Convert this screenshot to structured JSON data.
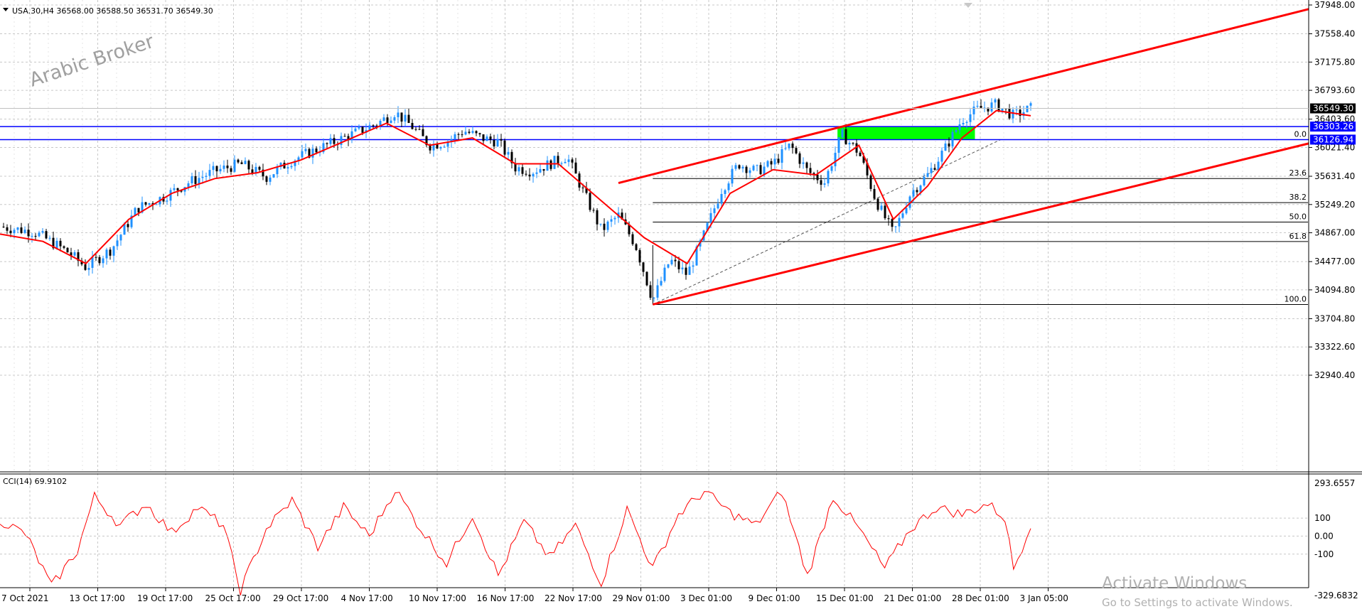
{
  "header": {
    "symbol_label": "USA.30,H4  36568.00 36588.50 36531.70 36549.30",
    "watermark": "Arabic Broker"
  },
  "indicator": {
    "label": "CCI(14) 69.9102",
    "axis_labels": [
      "293.6557",
      "100",
      "0.00",
      "-100",
      "-329.6832"
    ]
  },
  "os_watermark": {
    "line1": "Activate Windows",
    "line2": "Go to Settings to activate Windows."
  },
  "colors": {
    "bull": "#1E90FF",
    "bear": "#000000",
    "ma": "#FF0000",
    "trend": "#FF0000",
    "level": "#0000FF",
    "zone": "#00FF00",
    "fib": "#000000",
    "grid": "#C8C8C8"
  },
  "chart_data": {
    "type": "candlestick",
    "symbol": "USA.30",
    "timeframe": "H4",
    "ohlc_last": {
      "open": 36568.0,
      "high": 36588.5,
      "low": 36531.7,
      "close": 36549.3
    },
    "price_axis_ticks": [
      37948.0,
      37558.4,
      37175.8,
      36793.6,
      36403.6,
      36021.4,
      35631.4,
      35249.2,
      34867.0,
      34477.0,
      34094.8,
      33704.8,
      33322.6,
      32940.4
    ],
    "time_axis_labels": [
      "7 Oct 2021",
      "13 Oct 17:00",
      "19 Oct 17:00",
      "25 Oct 17:00",
      "29 Oct 17:00",
      "4 Nov 17:00",
      "10 Nov 17:00",
      "16 Nov 17:00",
      "22 Nov 17:00",
      "29 Nov 01:00",
      "3 Dec 01:00",
      "9 Dec 01:00",
      "15 Dec 01:00",
      "21 Dec 01:00",
      "28 Dec 01:00",
      "3 Jan 05:00"
    ],
    "current_price_label": "36549.30",
    "horizontal_levels": [
      {
        "label": "36303.26",
        "price": 36303.26
      },
      {
        "label": "36126.94",
        "price": 36126.94
      }
    ],
    "fibonacci": {
      "high": 36126.94,
      "low": 33897.0,
      "levels": [
        {
          "label": "0.0",
          "ratio": 0.0
        },
        {
          "label": "23.6",
          "ratio": 0.236
        },
        {
          "label": "38.2",
          "ratio": 0.382
        },
        {
          "label": "50.0",
          "ratio": 0.5
        },
        {
          "label": "61.8",
          "ratio": 0.618
        },
        {
          "label": "100.0",
          "ratio": 1.0
        }
      ]
    },
    "channel": {
      "upper": {
        "from_price": 35540,
        "to_price": 37892
      },
      "lower": {
        "from_price": 33897,
        "to_price": 36075
      }
    },
    "supply_zone": {
      "top": 36303.26,
      "bottom": 36126.94
    },
    "price_path": [
      {
        "t": 0,
        "p": 34950
      },
      {
        "t": 4,
        "p": 34880
      },
      {
        "t": 8,
        "p": 34600
      },
      {
        "t": 10,
        "p": 34400
      },
      {
        "t": 13,
        "p": 34650
      },
      {
        "t": 16,
        "p": 35200
      },
      {
        "t": 19,
        "p": 35350
      },
      {
        "t": 22,
        "p": 35550
      },
      {
        "t": 25,
        "p": 35700
      },
      {
        "t": 28,
        "p": 35800
      },
      {
        "t": 31,
        "p": 35620
      },
      {
        "t": 34,
        "p": 35850
      },
      {
        "t": 37,
        "p": 36000
      },
      {
        "t": 40,
        "p": 36150
      },
      {
        "t": 44,
        "p": 36350
      },
      {
        "t": 46,
        "p": 36500
      },
      {
        "t": 48,
        "p": 36300
      },
      {
        "t": 50,
        "p": 36050
      },
      {
        "t": 52,
        "p": 36100
      },
      {
        "t": 54,
        "p": 36250
      },
      {
        "t": 56,
        "p": 36150
      },
      {
        "t": 58,
        "p": 36100
      },
      {
        "t": 60,
        "p": 35750
      },
      {
        "t": 62,
        "p": 35700
      },
      {
        "t": 64,
        "p": 35800
      },
      {
        "t": 66,
        "p": 35900
      },
      {
        "t": 68,
        "p": 35400
      },
      {
        "t": 70,
        "p": 34900
      },
      {
        "t": 72,
        "p": 35100
      },
      {
        "t": 74,
        "p": 34700
      },
      {
        "t": 76,
        "p": 33950
      },
      {
        "t": 78,
        "p": 34500
      },
      {
        "t": 80,
        "p": 34300
      },
      {
        "t": 82,
        "p": 34850
      },
      {
        "t": 84,
        "p": 35450
      },
      {
        "t": 86,
        "p": 35800
      },
      {
        "t": 88,
        "p": 35700
      },
      {
        "t": 90,
        "p": 35800
      },
      {
        "t": 92,
        "p": 36050
      },
      {
        "t": 94,
        "p": 35700
      },
      {
        "t": 96,
        "p": 35550
      },
      {
        "t": 98,
        "p": 36200
      },
      {
        "t": 100,
        "p": 35950
      },
      {
        "t": 102,
        "p": 35300
      },
      {
        "t": 104,
        "p": 34850
      },
      {
        "t": 106,
        "p": 35400
      },
      {
        "t": 108,
        "p": 35650
      },
      {
        "t": 110,
        "p": 36000
      },
      {
        "t": 112,
        "p": 36400
      },
      {
        "t": 114,
        "p": 36550
      },
      {
        "t": 116,
        "p": 36600
      },
      {
        "t": 118,
        "p": 36450
      },
      {
        "t": 120,
        "p": 36550
      }
    ],
    "ma_path": [
      {
        "t": 0,
        "p": 34850
      },
      {
        "t": 5,
        "p": 34750
      },
      {
        "t": 10,
        "p": 34450
      },
      {
        "t": 15,
        "p": 35050
      },
      {
        "t": 20,
        "p": 35400
      },
      {
        "t": 25,
        "p": 35600
      },
      {
        "t": 30,
        "p": 35680
      },
      {
        "t": 35,
        "p": 35850
      },
      {
        "t": 40,
        "p": 36100
      },
      {
        "t": 45,
        "p": 36350
      },
      {
        "t": 50,
        "p": 36050
      },
      {
        "t": 55,
        "p": 36150
      },
      {
        "t": 60,
        "p": 35800
      },
      {
        "t": 65,
        "p": 35800
      },
      {
        "t": 70,
        "p": 35300
      },
      {
        "t": 75,
        "p": 34800
      },
      {
        "t": 80,
        "p": 34450
      },
      {
        "t": 85,
        "p": 35400
      },
      {
        "t": 90,
        "p": 35720
      },
      {
        "t": 95,
        "p": 35650
      },
      {
        "t": 100,
        "p": 36050
      },
      {
        "t": 104,
        "p": 35050
      },
      {
        "t": 108,
        "p": 35500
      },
      {
        "t": 112,
        "p": 36150
      },
      {
        "t": 116,
        "p": 36520
      },
      {
        "t": 120,
        "p": 36450
      }
    ],
    "cci_path": [
      {
        "t": 0,
        "p": 90
      },
      {
        "t": 3,
        "p": 10
      },
      {
        "t": 6,
        "p": -280
      },
      {
        "t": 9,
        "p": -80
      },
      {
        "t": 11,
        "p": 220
      },
      {
        "t": 14,
        "p": 60
      },
      {
        "t": 17,
        "p": 180
      },
      {
        "t": 20,
        "p": 20
      },
      {
        "t": 23,
        "p": 160
      },
      {
        "t": 26,
        "p": 60
      },
      {
        "t": 28,
        "p": -300
      },
      {
        "t": 31,
        "p": 40
      },
      {
        "t": 34,
        "p": 200
      },
      {
        "t": 37,
        "p": -60
      },
      {
        "t": 40,
        "p": 160
      },
      {
        "t": 43,
        "p": 0
      },
      {
        "t": 46,
        "p": 260
      },
      {
        "t": 49,
        "p": 40
      },
      {
        "t": 52,
        "p": -150
      },
      {
        "t": 55,
        "p": 120
      },
      {
        "t": 58,
        "p": -220
      },
      {
        "t": 61,
        "p": 80
      },
      {
        "t": 64,
        "p": -120
      },
      {
        "t": 67,
        "p": 60
      },
      {
        "t": 70,
        "p": -260
      },
      {
        "t": 73,
        "p": 150
      },
      {
        "t": 76,
        "p": -180
      },
      {
        "t": 79,
        "p": 120
      },
      {
        "t": 82,
        "p": 250
      },
      {
        "t": 85,
        "p": 130
      },
      {
        "t": 88,
        "p": 60
      },
      {
        "t": 91,
        "p": 250
      },
      {
        "t": 94,
        "p": -220
      },
      {
        "t": 97,
        "p": 220
      },
      {
        "t": 100,
        "p": 40
      },
      {
        "t": 103,
        "p": -180
      },
      {
        "t": 106,
        "p": 40
      },
      {
        "t": 109,
        "p": 160
      },
      {
        "t": 112,
        "p": 120
      },
      {
        "t": 115,
        "p": 180
      },
      {
        "t": 117,
        "p": 100
      },
      {
        "t": 118,
        "p": -180
      },
      {
        "t": 119,
        "p": -60
      },
      {
        "t": 120,
        "p": 70
      }
    ],
    "cci_range": [
      -329.6832,
      293.6557
    ],
    "grid": true
  }
}
